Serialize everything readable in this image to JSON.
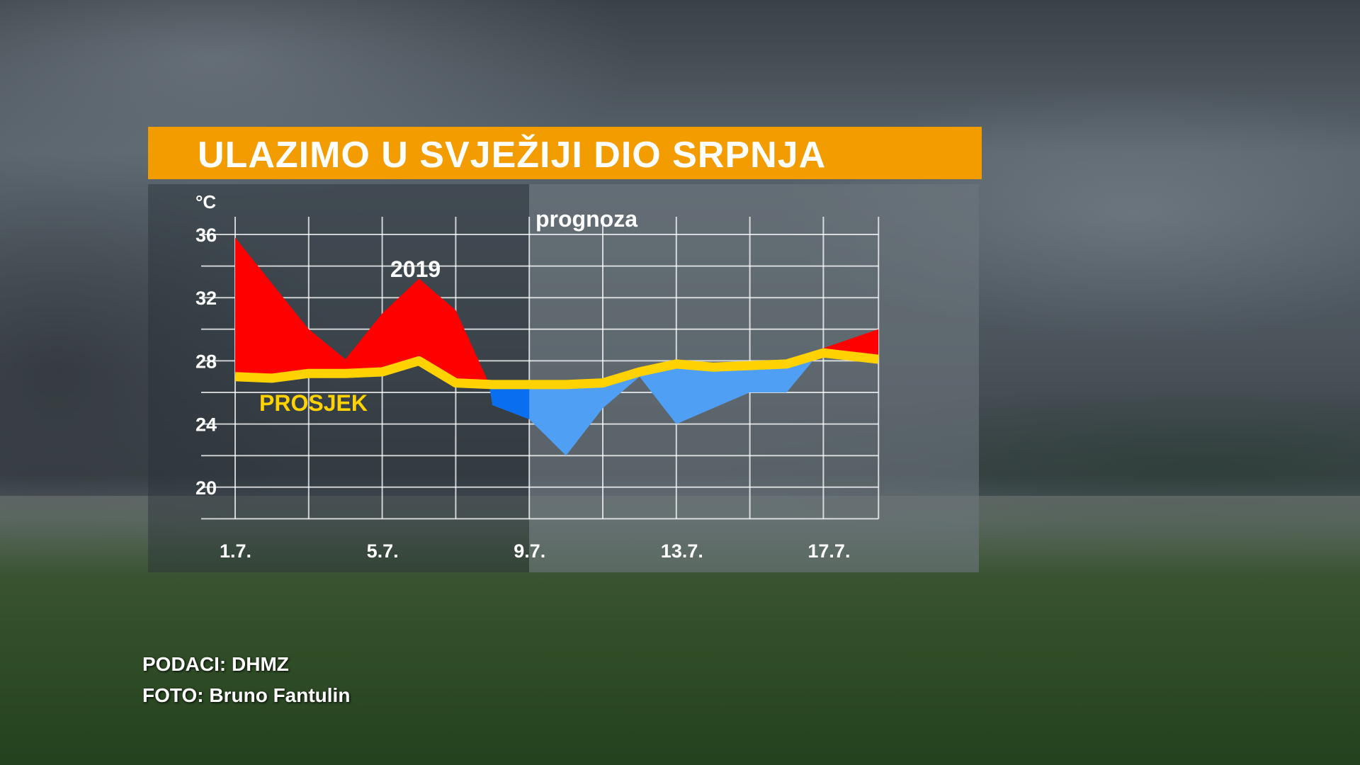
{
  "title": "ULAZIMO U SVJEŽIJI DIO SRPNJA",
  "credits": {
    "data": "PODACI: DHMZ",
    "photo": "FOTO: Bruno Fantulin"
  },
  "chart_data": {
    "type": "area",
    "title": "ULAZIMO U SVJEŽIJI DIO SRPNJA",
    "ylabel": "°C",
    "ylim": [
      18,
      36
    ],
    "ytick_values": [
      36,
      34,
      32,
      30,
      28,
      26,
      24,
      22,
      20,
      18
    ],
    "ytick_labels": [
      "36",
      "32",
      "28",
      "24",
      "20"
    ],
    "ytick_label_values": [
      36,
      32,
      28,
      24,
      20
    ],
    "xlim": [
      1,
      18.5
    ],
    "xgrid_values": [
      1,
      3,
      5,
      7,
      9,
      11,
      13,
      15,
      17,
      18.5
    ],
    "xtick_labels": [
      "1.7.",
      "5.7.",
      "9.7.",
      "13.7.",
      "17.7."
    ],
    "xtick_values": [
      1,
      5,
      9,
      13,
      17
    ],
    "forecast_start": 9,
    "forecast_label": "prognoza",
    "series": [
      {
        "name": "2019",
        "x": [
          1,
          3,
          4,
          5,
          6,
          7,
          7.9,
          8,
          9,
          10,
          11,
          12,
          13,
          14,
          15,
          16,
          17,
          18.5
        ],
        "values": [
          35.8,
          30,
          28.1,
          31,
          33.2,
          31.2,
          26.6,
          25.2,
          24.3,
          22,
          25,
          27,
          24,
          25,
          26,
          26,
          28.8,
          30
        ]
      },
      {
        "name": "PROSJEK",
        "x": [
          1,
          2,
          3,
          4,
          5,
          6,
          7,
          8,
          9,
          10,
          11,
          12,
          13,
          14,
          15,
          16,
          17,
          18.5
        ],
        "values": [
          27,
          26.9,
          27.2,
          27.2,
          27.3,
          28,
          26.6,
          26.5,
          26.5,
          26.5,
          26.6,
          27.3,
          27.8,
          27.6,
          27.7,
          27.8,
          28.5,
          28.1
        ]
      }
    ],
    "colors": {
      "above": "#ff0000",
      "below_past": "#0a6ef0",
      "below": "#4f9ff5",
      "average": "#ffd200"
    }
  }
}
